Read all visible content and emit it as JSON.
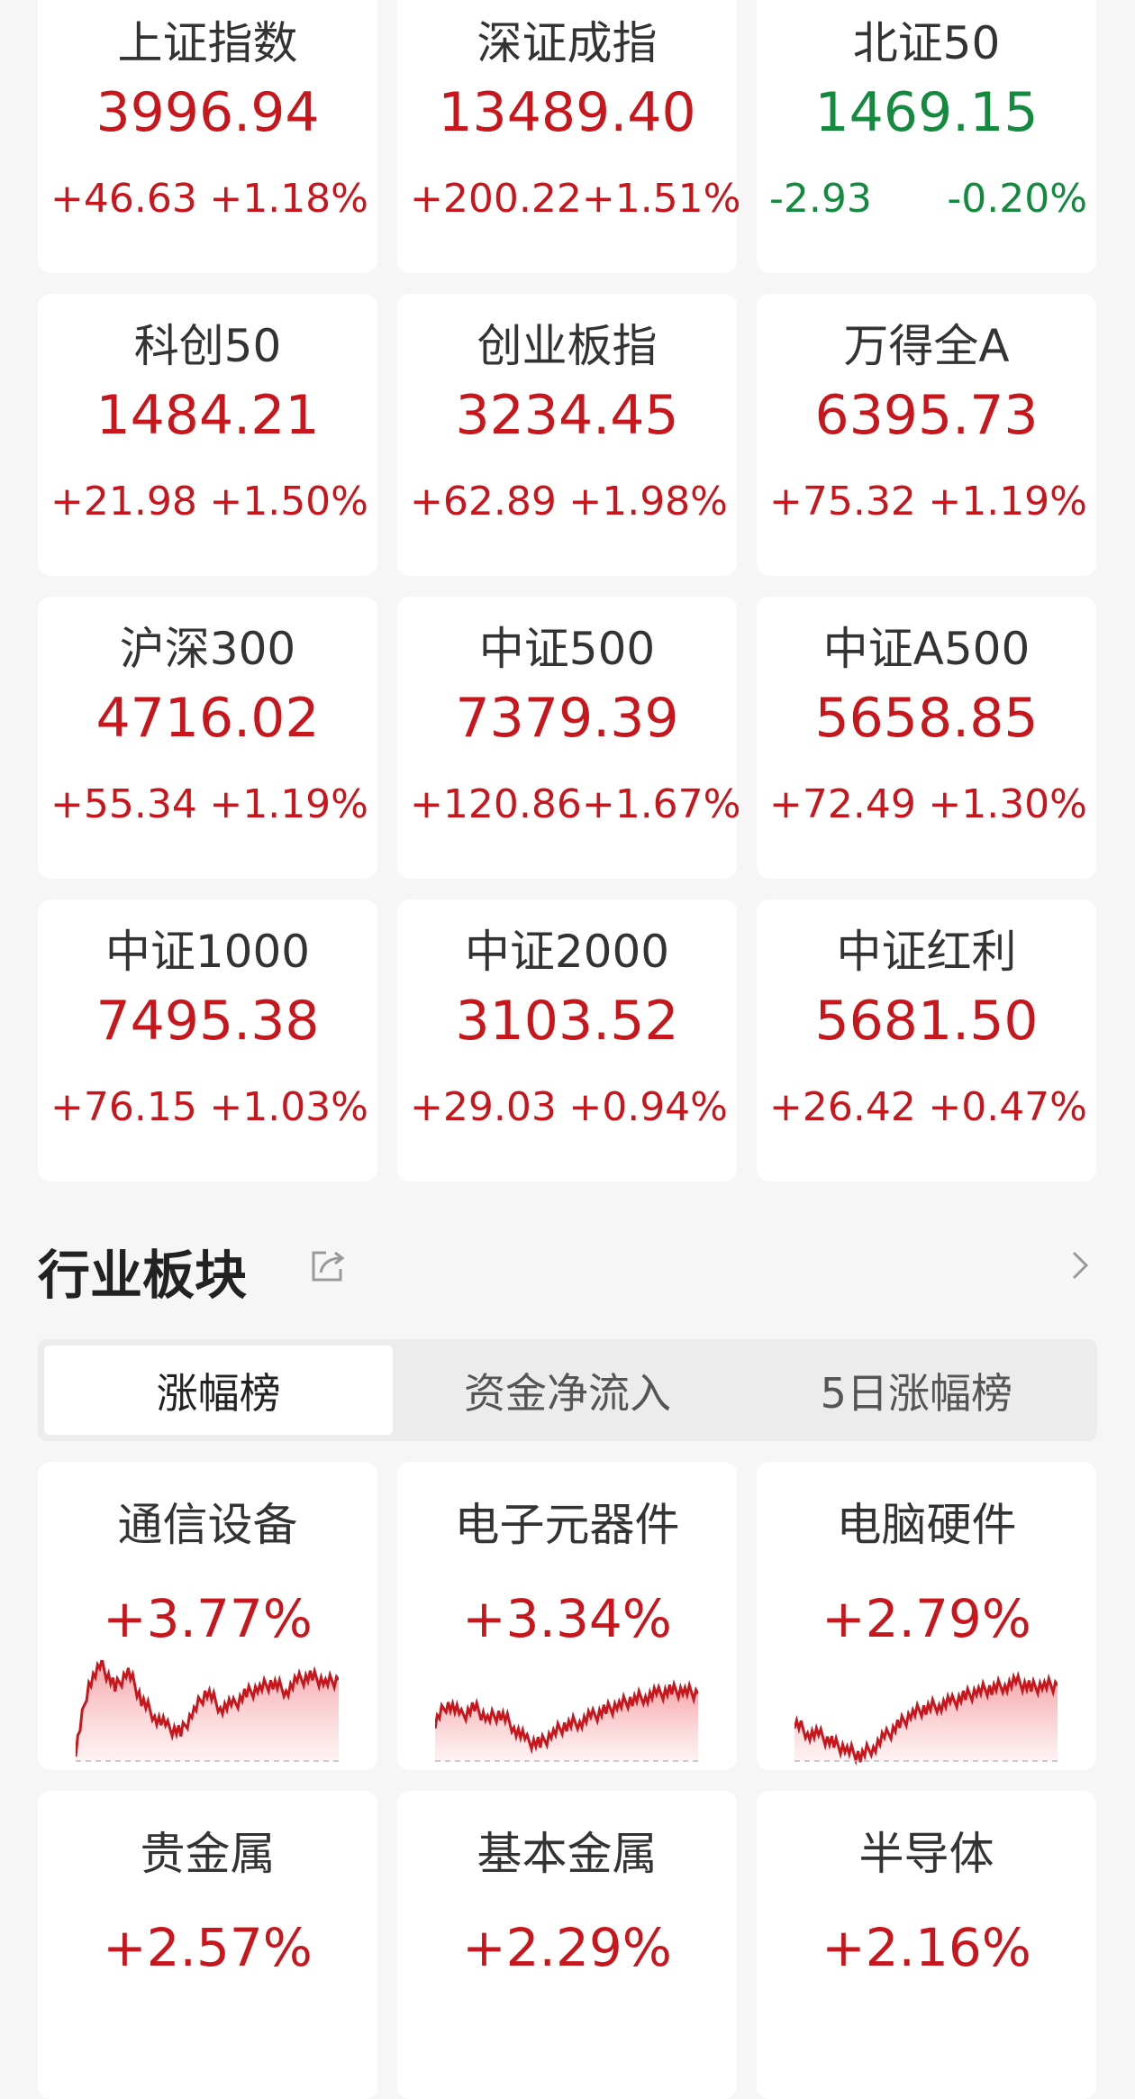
{
  "indices": [
    {
      "name": "上证指数",
      "value": "3996.94",
      "change": "+46.63",
      "pct": "+1.18%",
      "dir": "up"
    },
    {
      "name": "深证成指",
      "value": "13489.40",
      "change": "+200.22",
      "pct": "+1.51%",
      "dir": "up"
    },
    {
      "name": "北证50",
      "value": "1469.15",
      "change": "-2.93",
      "pct": "-0.20%",
      "dir": "down"
    },
    {
      "name": "科创50",
      "value": "1484.21",
      "change": "+21.98",
      "pct": "+1.50%",
      "dir": "up"
    },
    {
      "name": "创业板指",
      "value": "3234.45",
      "change": "+62.89",
      "pct": "+1.98%",
      "dir": "up"
    },
    {
      "name": "万得全A",
      "value": "6395.73",
      "change": "+75.32",
      "pct": "+1.19%",
      "dir": "up"
    },
    {
      "name": "沪深300",
      "value": "4716.02",
      "change": "+55.34",
      "pct": "+1.19%",
      "dir": "up"
    },
    {
      "name": "中证500",
      "value": "7379.39",
      "change": "+120.86",
      "pct": "+1.67%",
      "dir": "up"
    },
    {
      "name": "中证A500",
      "value": "5658.85",
      "change": "+72.49",
      "pct": "+1.30%",
      "dir": "up"
    },
    {
      "name": "中证1000",
      "value": "7495.38",
      "change": "+76.15",
      "pct": "+1.03%",
      "dir": "up"
    },
    {
      "name": "中证2000",
      "value": "3103.52",
      "change": "+29.03",
      "pct": "+0.94%",
      "dir": "up"
    },
    {
      "name": "中证红利",
      "value": "5681.50",
      "change": "+26.42",
      "pct": "+0.47%",
      "dir": "up"
    }
  ],
  "section": {
    "title": "行业板块",
    "share_icon": "share-icon",
    "more_icon": "chevron-right-icon"
  },
  "tabs": [
    {
      "label": "涨幅榜",
      "active": true
    },
    {
      "label": "资金净流入",
      "active": false
    },
    {
      "label": "5日涨幅榜",
      "active": false
    }
  ],
  "colors": {
    "up": "#c8161d",
    "down": "#138a3e"
  },
  "sectors": [
    {
      "name": "通信设备",
      "pct": "+3.77%",
      "spark": [
        0.4,
        2.8,
        3.4,
        2.6,
        3.2,
        2.2,
        1.6,
        1.2,
        1.0,
        1.8,
        2.5,
        1.9,
        2.0,
        2.4,
        2.6,
        2.8,
        2.5,
        2.9,
        3.0,
        2.8,
        2.9
      ]
    },
    {
      "name": "电子元器件",
      "pct": "+3.34%",
      "spark": [
        1.4,
        2.1,
        1.6,
        1.9,
        1.5,
        1.7,
        1.2,
        0.7,
        0.6,
        1.0,
        1.3,
        1.4,
        1.6,
        1.8,
        2.0,
        2.2,
        2.3,
        2.4,
        2.5,
        2.5,
        2.4
      ]
    },
    {
      "name": "电脑硬件",
      "pct": "+2.79%",
      "spark": [
        1.4,
        1.0,
        0.9,
        0.6,
        0.4,
        0.2,
        0.5,
        0.9,
        1.3,
        1.7,
        1.9,
        2.0,
        2.1,
        2.3,
        2.5,
        2.6,
        2.7,
        2.8,
        2.6,
        2.7,
        2.7
      ]
    },
    {
      "name": "贵金属",
      "pct": "+2.57%"
    },
    {
      "name": "基本金属",
      "pct": "+2.29%"
    },
    {
      "name": "半导体",
      "pct": "+2.16%"
    }
  ]
}
